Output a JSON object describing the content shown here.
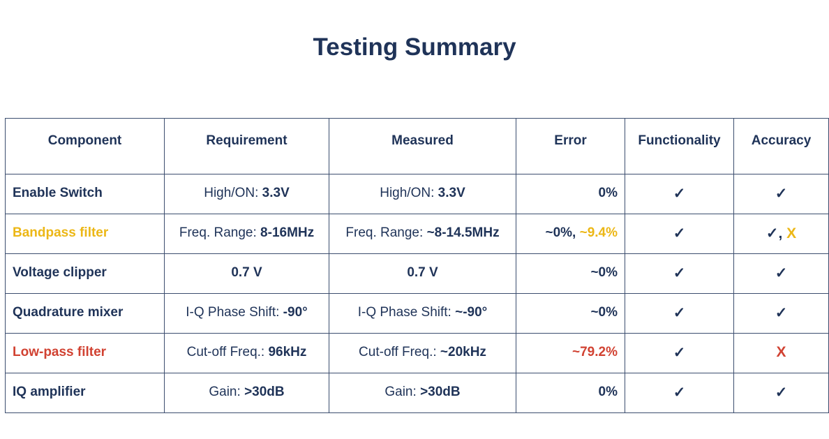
{
  "title": "Testing Summary",
  "colors": {
    "text": "#1f3358",
    "warning": "#ecb716",
    "failure": "#d14232",
    "border": "#3b4d6e"
  },
  "headers": [
    "Component",
    "Requirement",
    "Measured",
    "Error",
    "Functionality",
    "Accuracy"
  ],
  "rows": [
    {
      "component": "Enable Switch",
      "requirement": {
        "label": "High/ON: ",
        "value": "3.3V"
      },
      "measured": {
        "label": "High/ON: ",
        "value": "3.3V"
      },
      "error": {
        "a": "0%",
        "sep": "",
        "b": ""
      },
      "functionality": "✓",
      "accuracy": {
        "a": "✓",
        "sep": "",
        "b": ""
      }
    },
    {
      "component": "Bandpass filter",
      "requirement": {
        "label": "Freq. Range: ",
        "value": "8-16MHz"
      },
      "measured": {
        "label": "Freq. Range: ",
        "value": "~8-14.5MHz"
      },
      "error": {
        "a": "~0%",
        "sep": ", ",
        "b": "~9.4%"
      },
      "functionality": "✓",
      "accuracy": {
        "a": "✓",
        "sep": ", ",
        "b": "X"
      }
    },
    {
      "component": "Voltage clipper",
      "requirement": {
        "label": "",
        "value": "0.7 V"
      },
      "measured": {
        "label": "",
        "value": "0.7 V"
      },
      "error": {
        "a": "~0%",
        "sep": "",
        "b": ""
      },
      "functionality": "✓",
      "accuracy": {
        "a": "✓",
        "sep": "",
        "b": ""
      }
    },
    {
      "component": "Quadrature mixer",
      "requirement": {
        "label": "I-Q Phase Shift: ",
        "value": "-90°"
      },
      "measured": {
        "label": "I-Q Phase Shift: ",
        "value": "~-90°"
      },
      "error": {
        "a": "~0%",
        "sep": "",
        "b": ""
      },
      "functionality": "✓",
      "accuracy": {
        "a": "✓",
        "sep": "",
        "b": ""
      }
    },
    {
      "component": "Low-pass filter",
      "requirement": {
        "label": "Cut-off Freq.: ",
        "value": "96kHz"
      },
      "measured": {
        "label": "Cut-off Freq.: ",
        "value": "~20kHz"
      },
      "error": {
        "a": "",
        "sep": "",
        "b": "~79.2%"
      },
      "functionality": "✓",
      "accuracy": {
        "a": "",
        "sep": "",
        "b": "X"
      }
    },
    {
      "component": "IQ amplifier",
      "requirement": {
        "label": "Gain: ",
        "value": ">30dB"
      },
      "measured": {
        "label": "Gain: ",
        "value": ">30dB"
      },
      "error": {
        "a": "0%",
        "sep": "",
        "b": ""
      },
      "functionality": "✓",
      "accuracy": {
        "a": "✓",
        "sep": "",
        "b": ""
      }
    }
  ]
}
